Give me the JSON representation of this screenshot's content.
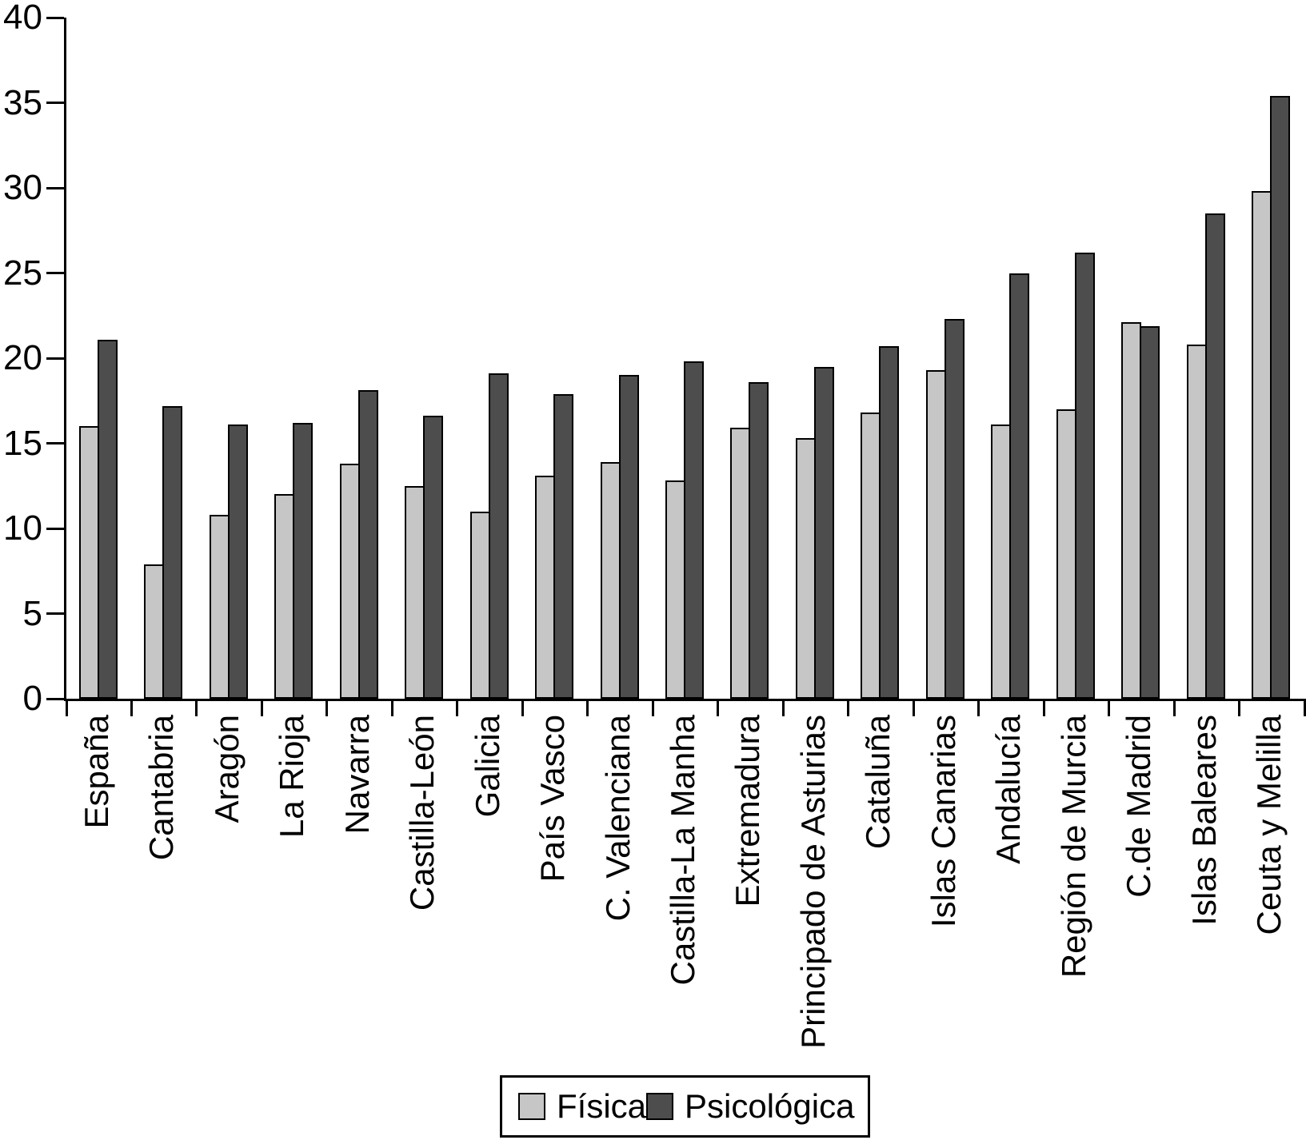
{
  "chart_data": {
    "type": "bar",
    "title": "",
    "xlabel": "",
    "ylabel": "",
    "categories": [
      "España",
      "Cantabria",
      "Aragón",
      "La Rioja",
      "Navarra",
      "Castilla-León",
      "Galicia",
      "País Vasco",
      "C. Valenciana",
      "Castilla-La Manha",
      "Extremadura",
      "Principado de Asturias",
      "Cataluña",
      "Islas Canarias",
      "Andalucía",
      "Región de Murcia",
      "C.de Madrid",
      "Islas Baleares",
      "Ceuta y Melilla"
    ],
    "series": [
      {
        "name": "Física",
        "color": "#c6c6c6",
        "values": [
          16.0,
          7.9,
          10.8,
          12.0,
          13.8,
          12.5,
          11.0,
          13.1,
          13.9,
          12.8,
          15.9,
          15.3,
          16.8,
          19.3,
          16.1,
          17.0,
          22.1,
          20.8,
          29.8
        ]
      },
      {
        "name": "Psicológica",
        "color": "#4d4d4d",
        "values": [
          21.1,
          17.2,
          16.1,
          16.2,
          18.1,
          16.6,
          19.1,
          17.9,
          19.0,
          19.8,
          18.6,
          19.5,
          20.7,
          22.3,
          25.0,
          26.2,
          21.9,
          28.5,
          35.4
        ]
      }
    ],
    "ylim": [
      0,
      40
    ],
    "yticks": [
      0,
      5,
      10,
      15,
      20,
      25,
      30,
      35,
      40
    ],
    "grid": false,
    "legend_position": "bottom-center",
    "bar_border_color": "#000000",
    "axis_color": "#000000",
    "background_color": "#ffffff",
    "x_label_rotation_degrees": 90
  }
}
